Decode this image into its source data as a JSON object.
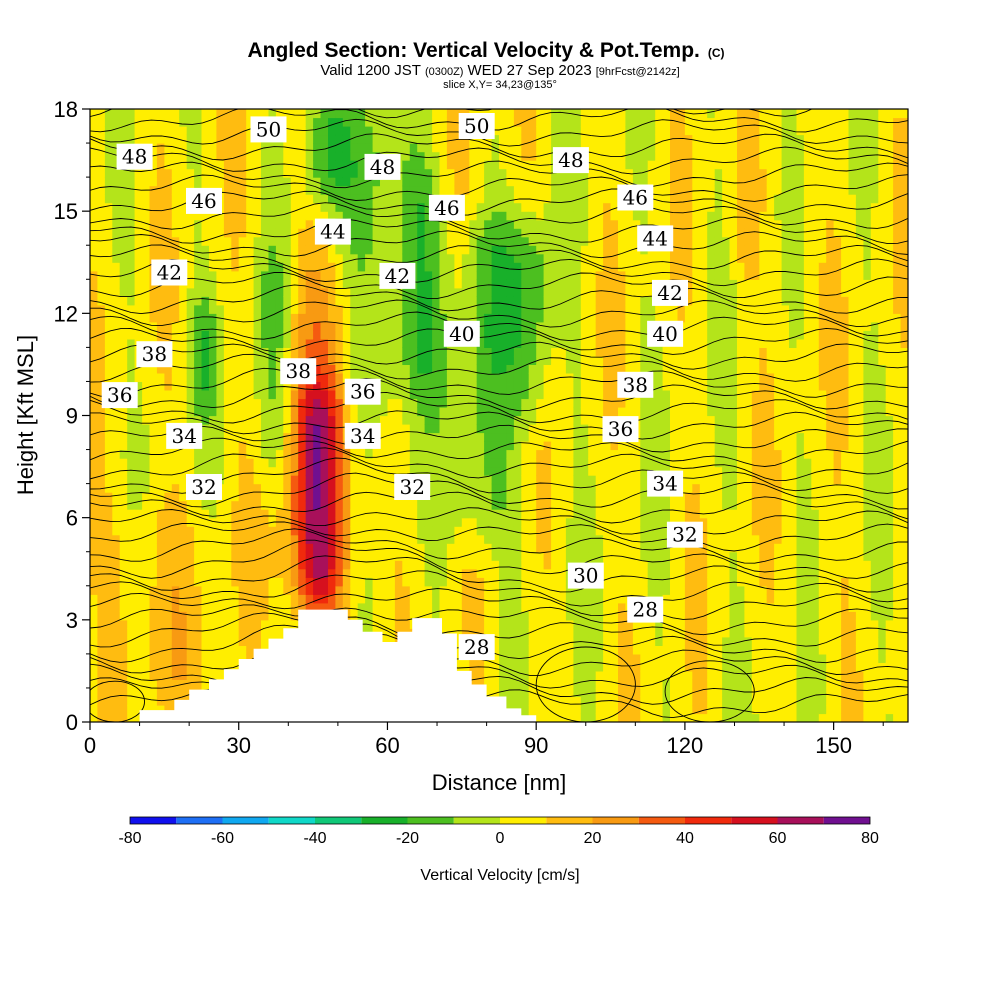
{
  "title": {
    "main": "Angled Section: Vertical Velocity & Pot.Temp.",
    "main_suffix": "(C)",
    "valid_prefix": "Valid 1200 JST",
    "valid_utc": "(0300Z)",
    "valid_date": "WED 27 Sep 2023",
    "valid_fcst": "[9hrFcst@2142z]",
    "slice": "slice X,Y= 34,23@135°"
  },
  "chart_data": {
    "type": "heatmap",
    "xlabel": "Distance [nm]",
    "ylabel": "Height [Kft MSL]",
    "xlim": [
      0,
      165
    ],
    "ylim": [
      0,
      18
    ],
    "xticks": [
      0,
      30,
      60,
      90,
      120,
      150
    ],
    "yticks": [
      0,
      3,
      6,
      9,
      12,
      15,
      18
    ],
    "xtick_labels": [
      "0",
      "30",
      "60",
      "90",
      "120",
      "150"
    ],
    "ytick_labels": [
      "0",
      "3",
      "6",
      "9",
      "12",
      "15",
      "18"
    ],
    "colorbar": {
      "title": "Vertical Velocity [cm/s]",
      "levels": [
        -80,
        -70,
        -60,
        -50,
        -40,
        -30,
        -20,
        -10,
        0,
        10,
        20,
        30,
        40,
        50,
        60,
        70,
        80
      ],
      "tick_labels": [
        "-80",
        "-60",
        "-40",
        "-20",
        "0",
        "20",
        "40",
        "60",
        "80"
      ],
      "tick_values": [
        -80,
        -60,
        -40,
        -20,
        0,
        20,
        40,
        60,
        80
      ],
      "colors": [
        "#1010ee",
        "#1e6ff5",
        "#10a8f0",
        "#10d8c8",
        "#10c878",
        "#18b02a",
        "#4cbf20",
        "#b4e41a",
        "#ffee00",
        "#ffbc10",
        "#f89a12",
        "#f55a10",
        "#f02a0c",
        "#d6101e",
        "#a8105a",
        "#701090"
      ]
    },
    "terrain": {
      "x": [
        0,
        10,
        10,
        17,
        17,
        20,
        20,
        24,
        24,
        27,
        27,
        30,
        30,
        33,
        33,
        36,
        36,
        39,
        39,
        42,
        42,
        52,
        52,
        55,
        55,
        59,
        59,
        62,
        62,
        65,
        65,
        71,
        71,
        74,
        74,
        77,
        77,
        80,
        80,
        84,
        84,
        87,
        87,
        90
      ],
      "y": [
        0,
        0,
        0.35,
        0.35,
        0.65,
        0.65,
        0.95,
        0.95,
        1.25,
        1.25,
        1.55,
        1.55,
        1.85,
        1.85,
        2.15,
        2.15,
        2.45,
        2.45,
        2.75,
        2.75,
        3.3,
        3.3,
        3.0,
        3.0,
        2.65,
        2.65,
        2.35,
        2.35,
        2.65,
        2.65,
        3.05,
        3.05,
        2.6,
        2.6,
        1.5,
        1.5,
        1.1,
        1.1,
        0.75,
        0.75,
        0.4,
        0.4,
        0.2,
        0.2
      ]
    },
    "potential_temperature_contours": [
      {
        "value": "28",
        "x": 78,
        "y": 2.2
      },
      {
        "value": "28",
        "x": 112,
        "y": 3.3
      },
      {
        "value": "30",
        "x": 100,
        "y": 4.3
      },
      {
        "value": "32",
        "x": 23,
        "y": 6.9
      },
      {
        "value": "32",
        "x": 65,
        "y": 6.9
      },
      {
        "value": "32",
        "x": 120,
        "y": 5.5
      },
      {
        "value": "34",
        "x": 19,
        "y": 8.4
      },
      {
        "value": "34",
        "x": 55,
        "y": 8.4
      },
      {
        "value": "34",
        "x": 116,
        "y": 7.0
      },
      {
        "value": "36",
        "x": 6,
        "y": 9.6
      },
      {
        "value": "36",
        "x": 55,
        "y": 9.7
      },
      {
        "value": "36",
        "x": 107,
        "y": 8.6
      },
      {
        "value": "38",
        "x": 13,
        "y": 10.8
      },
      {
        "value": "38",
        "x": 42,
        "y": 10.3
      },
      {
        "value": "38",
        "x": 110,
        "y": 9.9
      },
      {
        "value": "40",
        "x": 75,
        "y": 11.4
      },
      {
        "value": "40",
        "x": 116,
        "y": 11.4
      },
      {
        "value": "42",
        "x": 16,
        "y": 13.2
      },
      {
        "value": "42",
        "x": 62,
        "y": 13.1
      },
      {
        "value": "42",
        "x": 117,
        "y": 12.6
      },
      {
        "value": "44",
        "x": 49,
        "y": 14.4
      },
      {
        "value": "44",
        "x": 114,
        "y": 14.2
      },
      {
        "value": "46",
        "x": 23,
        "y": 15.3
      },
      {
        "value": "46",
        "x": 72,
        "y": 15.1
      },
      {
        "value": "46",
        "x": 110,
        "y": 15.4
      },
      {
        "value": "48",
        "x": 9,
        "y": 16.6
      },
      {
        "value": "48",
        "x": 59,
        "y": 16.3
      },
      {
        "value": "48",
        "x": 97,
        "y": 16.5
      },
      {
        "value": "50",
        "x": 36,
        "y": 17.4
      },
      {
        "value": "50",
        "x": 78,
        "y": 17.5
      }
    ],
    "velocity_features": [
      {
        "x": 46,
        "y0": 3.6,
        "y1": 9.5,
        "w": 5,
        "value": 45
      },
      {
        "x": 46,
        "y0": 3.6,
        "y1": 13.5,
        "w": 9,
        "value": 22
      },
      {
        "x": 12,
        "y0": 1.0,
        "y1": 6.0,
        "w": 12,
        "value": 14
      },
      {
        "x": 57,
        "y0": 9.0,
        "y1": 18.0,
        "w": 6,
        "value": -15
      },
      {
        "x": 47,
        "y0": 15.5,
        "y1": 18.0,
        "w": 5,
        "value": -15
      },
      {
        "x": 67,
        "y0": 10.0,
        "y1": 16.0,
        "w": 5,
        "value": -15
      },
      {
        "x": 79,
        "y0": 5.5,
        "y1": 10.5,
        "w": 7,
        "value": -12
      },
      {
        "x": 82,
        "y0": 11.0,
        "y1": 14.5,
        "w": 9,
        "value": -12
      },
      {
        "x": 37,
        "y0": 7.5,
        "y1": 13.5,
        "w": 4,
        "value": -12
      },
      {
        "x": 23,
        "y0": 9.5,
        "y1": 12.0,
        "w": 3,
        "value": -12
      },
      {
        "x": 89,
        "y0": 9.0,
        "y1": 14.0,
        "w": 4,
        "value": -12
      },
      {
        "x": 132,
        "y0": 13.5,
        "y1": 16.0,
        "w": 3,
        "value": 14
      },
      {
        "x": 143,
        "y0": 11.0,
        "y1": 17.5,
        "w": 6,
        "value": 6
      },
      {
        "x": 150,
        "y0": 2.0,
        "y1": 6.0,
        "w": 8,
        "value": 6
      }
    ]
  }
}
